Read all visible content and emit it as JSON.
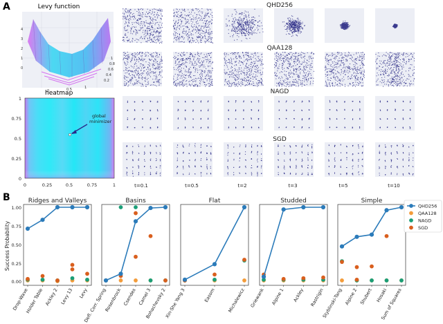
{
  "panel_a": {
    "label": "A",
    "levy": {
      "title": "Levy function",
      "z_ticks": [
        "4",
        "3",
        "2",
        "1",
        "0"
      ],
      "x_ticks": [
        "0",
        "0.5",
        "1"
      ],
      "y_ticks": [
        "0.2",
        "0.4",
        "0.6",
        "0.8",
        "1"
      ]
    },
    "heatmap": {
      "title": "heatmap",
      "annotation": "global\nminimizer",
      "x_ticks": [
        "0",
        "0.25",
        "0.5",
        "0.75",
        "1"
      ],
      "y_ticks": [
        "1",
        "0.75",
        "0.5",
        "0.25",
        "0"
      ]
    },
    "grid": {
      "row_titles": [
        "QHD256",
        "QAA128",
        "NAGD",
        "SGD"
      ],
      "time_labels": [
        "t=0.1",
        "t=0.5",
        "t=2",
        "t=3",
        "t=5",
        "t=10"
      ]
    }
  },
  "panel_b": {
    "label": "B",
    "ylabel": "Success Probability",
    "y_ticks": [
      "1.00",
      "0.75",
      "0.50",
      "0.25",
      "0.00"
    ],
    "legend": [
      {
        "name": "QHD256",
        "color": "#2b7bba"
      },
      {
        "name": "QAA128",
        "color": "#f39c3b"
      },
      {
        "name": "NAGD",
        "color": "#1a9e77"
      },
      {
        "name": "SGD",
        "color": "#d95f1e"
      }
    ]
  },
  "chart_data": [
    {
      "type": "line",
      "title": "Ridges and Valleys",
      "categories": [
        "Drop-Wave",
        "Holder Table",
        "Ackley 2",
        "Levy 13",
        "Levy"
      ],
      "ylim": [
        0,
        1
      ],
      "series": [
        {
          "name": "QHD256",
          "values": [
            0.71,
            0.83,
            1.0,
            1.0,
            1.0
          ]
        },
        {
          "name": "QAA128",
          "values": [
            0.01,
            0.01,
            0.0,
            0.01,
            0.01
          ]
        },
        {
          "name": "NAGD",
          "values": [
            0.02,
            0.02,
            0.01,
            0.04,
            0.02
          ]
        },
        {
          "name": "SGD",
          "values": [
            0.03,
            0.07,
            0.01,
            0.16,
            0.1
          ]
        }
      ],
      "extra_points": [
        {
          "series": "SGD",
          "category": "Levy 13",
          "value": 0.22
        }
      ]
    },
    {
      "type": "line",
      "title": "Basins",
      "categories": [
        "Defl. Corr. Spring",
        "Rosenbrock",
        "Csendes",
        "Camel 3",
        "Bohachevsky 2"
      ],
      "ylim": [
        0,
        1
      ],
      "series": [
        {
          "name": "QHD256",
          "values": [
            0.01,
            0.1,
            0.81,
            0.99,
            1.0
          ]
        },
        {
          "name": "QAA128",
          "values": [
            0.01,
            0.01,
            0.01,
            0.01,
            0.01
          ]
        },
        {
          "name": "NAGD",
          "values": [
            0.01,
            1.0,
            1.0,
            0.01,
            0.01
          ]
        },
        {
          "name": "SGD",
          "values": [
            0.01,
            0.07,
            0.33,
            0.61,
            0.01
          ]
        }
      ],
      "extra_points": [
        {
          "series": "SGD",
          "category": "Csendes",
          "value": 0.92
        }
      ]
    },
    {
      "type": "line",
      "title": "Flat",
      "categories": [
        "Xin-She Yang 3",
        "Easom",
        "Michalewicz"
      ],
      "ylim": [
        0,
        1
      ],
      "series": [
        {
          "name": "QHD256",
          "values": [
            0.02,
            0.23,
            1.0
          ]
        },
        {
          "name": "QAA128",
          "values": [
            0.01,
            0.01,
            0.01
          ]
        },
        {
          "name": "NAGD",
          "values": [
            0.01,
            0.02,
            0.28
          ]
        },
        {
          "name": "SGD",
          "values": [
            0.01,
            0.09,
            0.29
          ]
        }
      ]
    },
    {
      "type": "line",
      "title": "Studded",
      "categories": [
        "Griewank",
        "Alpine 1",
        "Ackley",
        "Rastrigin"
      ],
      "ylim": [
        0,
        1
      ],
      "series": [
        {
          "name": "QHD256",
          "values": [
            0.06,
            0.97,
            1.0,
            1.0
          ]
        },
        {
          "name": "QAA128",
          "values": [
            0.01,
            0.01,
            0.01,
            0.01
          ]
        },
        {
          "name": "NAGD",
          "values": [
            0.02,
            0.02,
            0.02,
            0.02
          ]
        },
        {
          "name": "SGD",
          "values": [
            0.09,
            0.03,
            0.04,
            0.05
          ]
        }
      ]
    },
    {
      "type": "line",
      "title": "Simple",
      "categories": [
        "Styblinski-Tang",
        "Alpine 2",
        "Shubert",
        "Hosaki",
        "Sum of Squares"
      ],
      "ylim": [
        0,
        1
      ],
      "series": [
        {
          "name": "QHD256",
          "values": [
            0.47,
            0.6,
            0.63,
            0.96,
            1.0
          ]
        },
        {
          "name": "QAA128",
          "values": [
            0.01,
            0.01,
            0.01,
            0.01,
            0.01
          ]
        },
        {
          "name": "NAGD",
          "values": [
            0.27,
            0.01,
            0.01,
            0.01,
            0.01
          ]
        },
        {
          "name": "SGD",
          "values": [
            0.26,
            0.19,
            0.2,
            0.61,
            1.0
          ]
        }
      ],
      "extra_points": [
        {
          "series": "SGD",
          "category": "Alpine 2",
          "value": 0.02
        }
      ]
    }
  ]
}
